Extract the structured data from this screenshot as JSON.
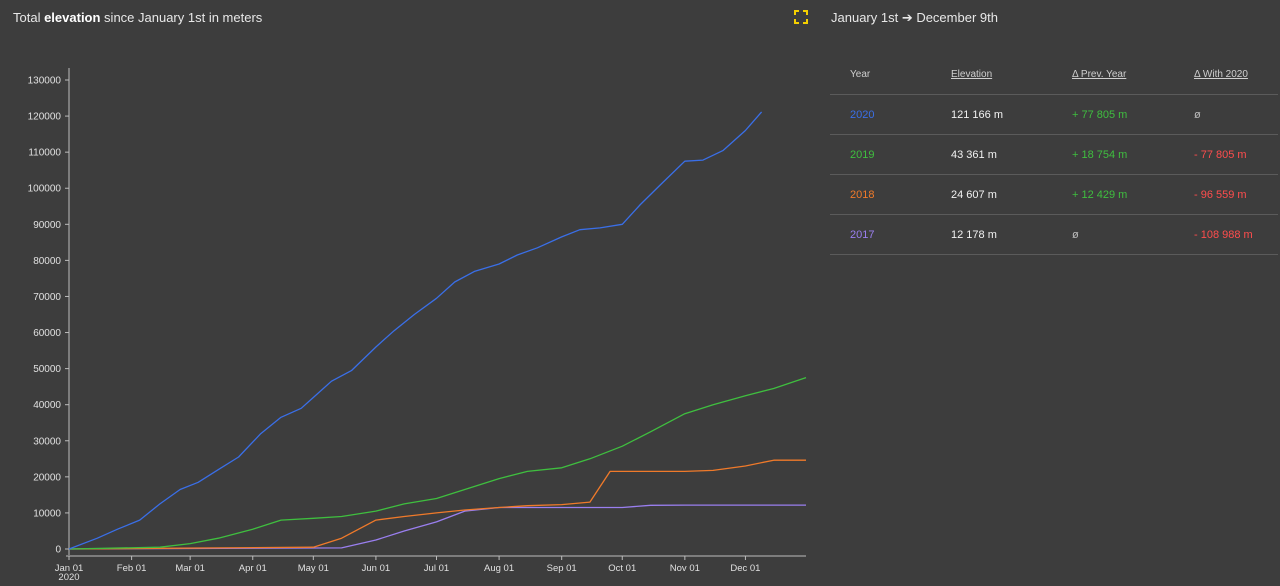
{
  "header": {
    "title_prefix": "Total ",
    "title_bold": "elevation",
    "title_suffix": " since January 1st in meters",
    "range": "January 1st ➔ December 9th",
    "expand_icon": "expand-icon",
    "expand_color": "#f5d000"
  },
  "table": {
    "headers": {
      "year": "Year",
      "elevation": "Elevation",
      "prev": "Δ Prev. Year",
      "with": "Δ With 2020"
    },
    "rows": [
      {
        "year": "2020",
        "color": "#3a6fe8",
        "elevation": "121 166 m",
        "prev": "+ 77 805 m",
        "prev_class": "g",
        "with": "ø",
        "with_class": "n"
      },
      {
        "year": "2019",
        "color": "#3fbf3f",
        "elevation": "43 361 m",
        "prev": "+ 18 754 m",
        "prev_class": "g",
        "with": "- 77 805 m",
        "with_class": "r"
      },
      {
        "year": "2018",
        "color": "#f07a2a",
        "elevation": "24 607 m",
        "prev": "+ 12 429 m",
        "prev_class": "g",
        "with": "- 96 559 m",
        "with_class": "r"
      },
      {
        "year": "2017",
        "color": "#9a7ff0",
        "elevation": "12 178 m",
        "prev": "ø",
        "prev_class": "n",
        "with": "- 108 988 m",
        "with_class": "r"
      }
    ]
  },
  "chart_data": {
    "type": "line",
    "title": "Total elevation since January 1st in meters",
    "ylim": [
      0,
      130000
    ],
    "yticks": [
      0,
      10000,
      20000,
      30000,
      40000,
      50000,
      60000,
      70000,
      80000,
      90000,
      100000,
      110000,
      120000,
      130000
    ],
    "xlim": [
      "2020-01-01",
      "2020-12-31"
    ],
    "xticks": [
      {
        "date": "2020-01-01",
        "label": "Jan 01",
        "sublabel": "2020"
      },
      {
        "date": "2020-02-01",
        "label": "Feb 01"
      },
      {
        "date": "2020-03-01",
        "label": "Mar 01"
      },
      {
        "date": "2020-04-01",
        "label": "Apr 01"
      },
      {
        "date": "2020-05-01",
        "label": "May 01"
      },
      {
        "date": "2020-06-01",
        "label": "Jun 01"
      },
      {
        "date": "2020-07-01",
        "label": "Jul 01"
      },
      {
        "date": "2020-08-01",
        "label": "Aug 01"
      },
      {
        "date": "2020-09-01",
        "label": "Sep 01"
      },
      {
        "date": "2020-10-01",
        "label": "Oct 01"
      },
      {
        "date": "2020-11-01",
        "label": "Nov 01"
      },
      {
        "date": "2020-12-01",
        "label": "Dec 01"
      }
    ],
    "grid": false,
    "series": [
      {
        "name": "2020",
        "color": "#3a6fe8",
        "x": [
          "2020-01-01",
          "2020-01-15",
          "2020-01-25",
          "2020-02-05",
          "2020-02-15",
          "2020-02-25",
          "2020-03-05",
          "2020-03-15",
          "2020-03-25",
          "2020-04-05",
          "2020-04-15",
          "2020-04-25",
          "2020-05-01",
          "2020-05-10",
          "2020-05-20",
          "2020-06-01",
          "2020-06-10",
          "2020-06-20",
          "2020-07-01",
          "2020-07-10",
          "2020-07-20",
          "2020-08-01",
          "2020-08-10",
          "2020-08-20",
          "2020-09-01",
          "2020-09-10",
          "2020-09-20",
          "2020-10-01",
          "2020-10-10",
          "2020-10-20",
          "2020-11-01",
          "2020-11-10",
          "2020-11-20",
          "2020-12-01",
          "2020-12-09"
        ],
        "y": [
          0,
          3000,
          5500,
          8000,
          12500,
          16500,
          18500,
          22000,
          25500,
          32000,
          36500,
          39000,
          42000,
          46500,
          49500,
          56000,
          60500,
          65000,
          69500,
          74000,
          77000,
          79000,
          81500,
          83500,
          86500,
          88500,
          89000,
          90000,
          95500,
          101000,
          107500,
          107800,
          110500,
          116000,
          121166
        ]
      },
      {
        "name": "2019",
        "color": "#3fbf3f",
        "x": [
          "2020-01-01",
          "2020-02-15",
          "2020-03-01",
          "2020-03-15",
          "2020-04-01",
          "2020-04-15",
          "2020-05-01",
          "2020-05-15",
          "2020-06-01",
          "2020-06-15",
          "2020-07-01",
          "2020-07-15",
          "2020-08-01",
          "2020-08-15",
          "2020-09-01",
          "2020-09-15",
          "2020-10-01",
          "2020-10-15",
          "2020-11-01",
          "2020-11-15",
          "2020-12-01",
          "2020-12-15",
          "2020-12-31"
        ],
        "y": [
          0,
          500,
          1500,
          3000,
          5500,
          8000,
          8500,
          9000,
          10500,
          12500,
          14000,
          16500,
          19500,
          21500,
          22500,
          25000,
          28500,
          32500,
          37500,
          40000,
          42500,
          44500,
          47500
        ]
      },
      {
        "name": "2018",
        "color": "#f07a2a",
        "x": [
          "2020-01-01",
          "2020-05-01",
          "2020-05-15",
          "2020-06-01",
          "2020-06-15",
          "2020-07-01",
          "2020-07-15",
          "2020-08-01",
          "2020-08-15",
          "2020-09-01",
          "2020-09-15",
          "2020-09-25",
          "2020-10-01",
          "2020-11-01",
          "2020-11-15",
          "2020-12-01",
          "2020-12-15",
          "2020-12-31"
        ],
        "y": [
          0,
          500,
          3000,
          8000,
          9000,
          10000,
          10800,
          11500,
          12000,
          12300,
          13000,
          21500,
          21500,
          21500,
          21800,
          23000,
          24607,
          24607
        ]
      },
      {
        "name": "2017",
        "color": "#9a7ff0",
        "x": [
          "2020-01-01",
          "2020-05-15",
          "2020-06-01",
          "2020-06-15",
          "2020-07-01",
          "2020-07-15",
          "2020-08-01",
          "2020-09-01",
          "2020-10-01",
          "2020-10-15",
          "2020-11-01",
          "2020-12-31"
        ],
        "y": [
          0,
          300,
          2500,
          5000,
          7500,
          10500,
          11500,
          11500,
          11500,
          12100,
          12178,
          12178
        ]
      }
    ]
  }
}
